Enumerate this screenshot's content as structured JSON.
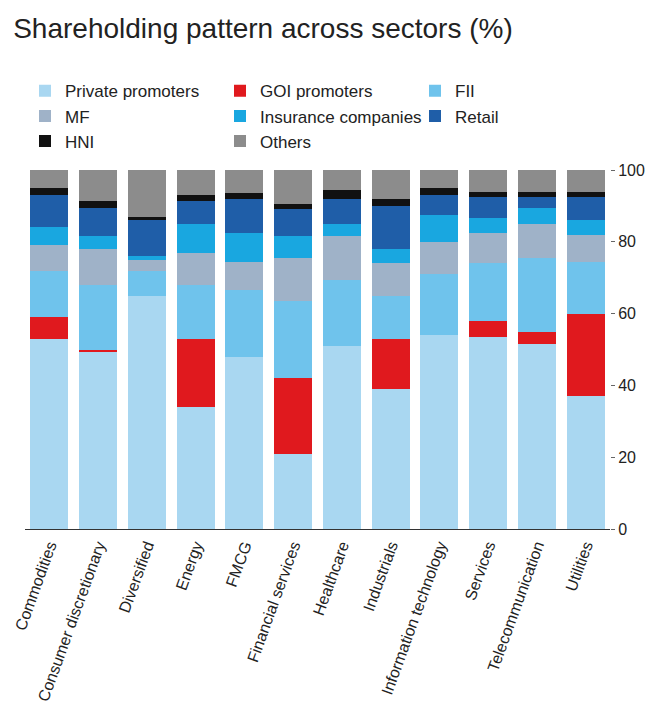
{
  "chart_data": {
    "type": "bar",
    "title": "Shareholding pattern across sectors (%)",
    "stacked": true,
    "legend": "top",
    "grid": false,
    "categories": [
      "Commodities",
      "Consumer discretionary",
      "Diversified",
      "Energy",
      "FMCG",
      "Financial services",
      "Healthcare",
      "Industrials",
      "Information technology",
      "Services",
      "Telecommunication",
      "Utilities"
    ],
    "ylim": [
      0,
      100
    ],
    "yticks": [
      0,
      20,
      40,
      60,
      80,
      100
    ],
    "series": [
      {
        "name": "Private promoters",
        "color": "#a9d7f1",
        "values": [
          53,
          49.5,
          65,
          34,
          48,
          21,
          51,
          39,
          54,
          53.5,
          51.5,
          37
        ]
      },
      {
        "name": "GOI promoters",
        "color": "#e0191e",
        "values": [
          6,
          0.5,
          0,
          19,
          0,
          21,
          0,
          14,
          0,
          4.5,
          3.5,
          23
        ]
      },
      {
        "name": "FII",
        "color": "#6fc3ec",
        "values": [
          13,
          18,
          7,
          15,
          18.5,
          21.5,
          18.5,
          12,
          17,
          16,
          20.5,
          14.5
        ]
      },
      {
        "name": "MF",
        "color": "#9fb2c8",
        "values": [
          7,
          10,
          3,
          9,
          8,
          12,
          12,
          9,
          9,
          8.5,
          9.5,
          7.5
        ]
      },
      {
        "name": "Insurance companies",
        "color": "#19a7e0",
        "values": [
          5,
          3.5,
          1,
          8,
          8,
          6,
          3.5,
          4,
          7.5,
          4,
          4.5,
          4
        ]
      },
      {
        "name": "Retail",
        "color": "#1f5ea8",
        "values": [
          9,
          8,
          10,
          6.5,
          9.5,
          7.5,
          7,
          12,
          5.5,
          6,
          3,
          6.5
        ]
      },
      {
        "name": "HNI",
        "color": "#111111",
        "values": [
          2,
          2,
          1,
          1.5,
          1.5,
          1.5,
          2.5,
          2,
          2,
          1.5,
          1.5,
          1.5
        ]
      },
      {
        "name": "Others",
        "color": "#8c8c8c",
        "values": [
          5,
          8.5,
          13,
          7,
          6.5,
          9.5,
          5.5,
          8,
          5,
          6,
          6,
          6
        ]
      }
    ]
  }
}
